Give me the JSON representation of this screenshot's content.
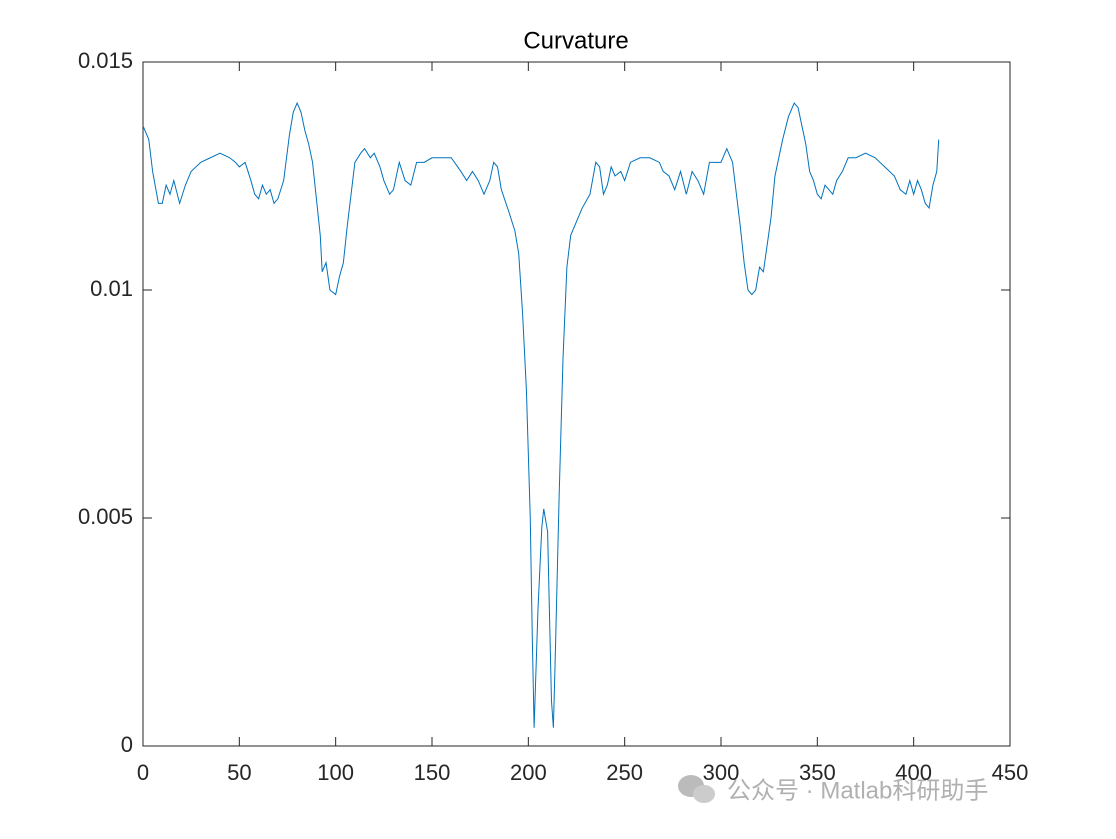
{
  "chart_data": {
    "type": "line",
    "title": "Curvature",
    "x": [
      0,
      3,
      5,
      8,
      10,
      12,
      14,
      16,
      19,
      22,
      25,
      30,
      35,
      40,
      45,
      48,
      50,
      53,
      56,
      58,
      60,
      62,
      64,
      66,
      68,
      70,
      73,
      76,
      78,
      80,
      82,
      84,
      86,
      88,
      90,
      92,
      93,
      95,
      97,
      100,
      102,
      104,
      106,
      108,
      110,
      113,
      115,
      118,
      120,
      123,
      125,
      128,
      130,
      133,
      136,
      139,
      142,
      146,
      150,
      155,
      160,
      165,
      168,
      171,
      174,
      177,
      180,
      182,
      184,
      186,
      190,
      193,
      195,
      197,
      199,
      201,
      202,
      203,
      205,
      207,
      208,
      210,
      212,
      213,
      214,
      216,
      218,
      220,
      222,
      225,
      228,
      232,
      235,
      237,
      239,
      241,
      243,
      245,
      248,
      250,
      253,
      258,
      263,
      268,
      270,
      273,
      276,
      279,
      282,
      285,
      288,
      291,
      294,
      297,
      300,
      303,
      306,
      308,
      310,
      312,
      314,
      316,
      318,
      320,
      322,
      324,
      326,
      328,
      330,
      332,
      335,
      338,
      340,
      342,
      344,
      346,
      348,
      350,
      352,
      354,
      356,
      358,
      360,
      363,
      366,
      370,
      375,
      380,
      385,
      390,
      393,
      396,
      398,
      400,
      402,
      404,
      406,
      408,
      410,
      412,
      413
    ],
    "series": [
      {
        "color": "#0072bd",
        "values": [
          0.0136,
          0.0133,
          0.0126,
          0.0119,
          0.0119,
          0.0123,
          0.0121,
          0.0124,
          0.0119,
          0.0123,
          0.0126,
          0.0128,
          0.0129,
          0.013,
          0.0129,
          0.0128,
          0.0127,
          0.0128,
          0.0124,
          0.0121,
          0.012,
          0.0123,
          0.0121,
          0.0122,
          0.0119,
          0.012,
          0.0124,
          0.0134,
          0.0139,
          0.0141,
          0.0139,
          0.0135,
          0.0132,
          0.0128,
          0.012,
          0.0112,
          0.0104,
          0.0106,
          0.01,
          0.0099,
          0.0103,
          0.0106,
          0.0114,
          0.0121,
          0.0128,
          0.013,
          0.0131,
          0.0129,
          0.013,
          0.0127,
          0.0124,
          0.0121,
          0.0122,
          0.0128,
          0.0124,
          0.0123,
          0.0128,
          0.0128,
          0.0129,
          0.0129,
          0.0129,
          0.0126,
          0.0124,
          0.0126,
          0.0124,
          0.0121,
          0.0124,
          0.0128,
          0.0127,
          0.0122,
          0.0117,
          0.0113,
          0.0108,
          0.0095,
          0.0078,
          0.005,
          0.0025,
          0.0004,
          0.003,
          0.0048,
          0.0052,
          0.0047,
          0.001,
          0.0004,
          0.002,
          0.0055,
          0.0085,
          0.0105,
          0.0112,
          0.0115,
          0.0118,
          0.0121,
          0.0128,
          0.0127,
          0.0121,
          0.0123,
          0.0127,
          0.0125,
          0.0126,
          0.0124,
          0.0128,
          0.0129,
          0.0129,
          0.0128,
          0.0126,
          0.0125,
          0.0122,
          0.0126,
          0.0121,
          0.0126,
          0.0124,
          0.0121,
          0.0128,
          0.0128,
          0.0128,
          0.0131,
          0.0128,
          0.0121,
          0.0114,
          0.0106,
          0.01,
          0.0099,
          0.01,
          0.0105,
          0.0104,
          0.011,
          0.0116,
          0.0125,
          0.0129,
          0.0133,
          0.0138,
          0.0141,
          0.014,
          0.0136,
          0.0132,
          0.0126,
          0.0124,
          0.0121,
          0.012,
          0.0123,
          0.0122,
          0.0121,
          0.0124,
          0.0126,
          0.0129,
          0.0129,
          0.013,
          0.0129,
          0.0127,
          0.0125,
          0.0122,
          0.0121,
          0.0124,
          0.0121,
          0.0124,
          0.0122,
          0.0119,
          0.0118,
          0.0123,
          0.0126,
          0.0133
        ]
      }
    ],
    "xlim": [
      0,
      450
    ],
    "xticks": [
      0,
      50,
      100,
      150,
      200,
      250,
      300,
      350,
      400,
      450
    ],
    "ylim": [
      0,
      0.015
    ],
    "yticks": [
      0,
      0.005,
      0.01,
      0.015
    ],
    "grid": false
  },
  "watermark": "公众号 · Matlab科研助手"
}
